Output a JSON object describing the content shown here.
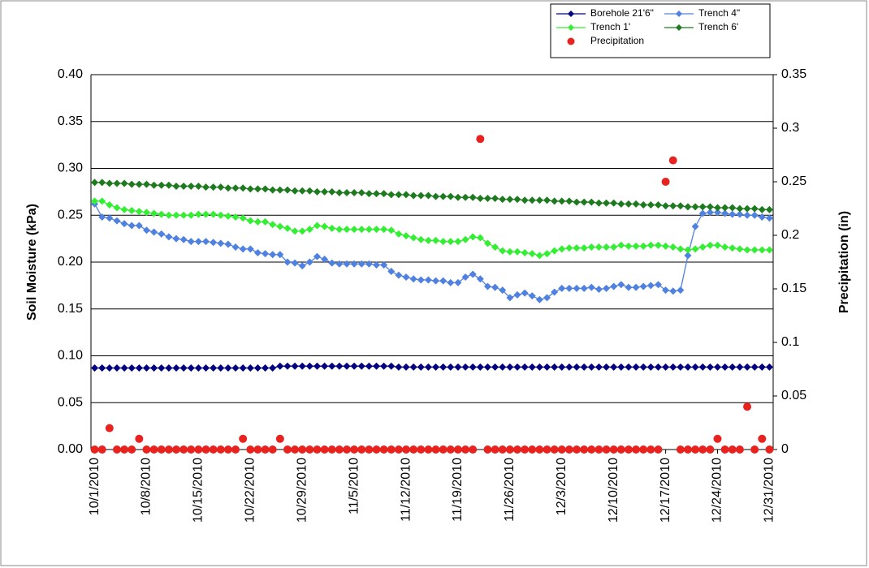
{
  "chart_data": {
    "type": "line",
    "ylabel": "Soil Moisture (kPa)",
    "y2label": "Precipitation (in)",
    "categories": [
      "10/1/2010",
      null,
      null,
      null,
      null,
      null,
      null,
      "10/8/2010",
      null,
      null,
      null,
      null,
      null,
      null,
      "10/15/2010",
      null,
      null,
      null,
      null,
      null,
      null,
      "10/22/2010",
      null,
      null,
      null,
      null,
      null,
      null,
      "10/29/2010",
      null,
      null,
      null,
      null,
      null,
      null,
      "11/5/2010",
      null,
      null,
      null,
      null,
      null,
      null,
      "11/12/2010",
      null,
      null,
      null,
      null,
      null,
      null,
      "11/19/2010",
      null,
      null,
      null,
      null,
      null,
      null,
      "11/26/2010",
      null,
      null,
      null,
      null,
      null,
      null,
      "12/3/2010",
      null,
      null,
      null,
      null,
      null,
      null,
      "12/10/2010",
      null,
      null,
      null,
      null,
      null,
      null,
      "12/17/2010",
      null,
      null,
      null,
      null,
      null,
      null,
      "12/24/2010",
      null,
      null,
      null,
      null,
      null,
      null,
      "12/31/2010"
    ],
    "ylim": [
      0,
      0.4
    ],
    "yticks": [
      {
        "value": 0,
        "label": "0.00"
      },
      {
        "value": 0.05,
        "label": "0.05"
      },
      {
        "value": 0.1,
        "label": "0.10"
      },
      {
        "value": 0.15,
        "label": "0.15"
      },
      {
        "value": 0.2,
        "label": "0.20"
      },
      {
        "value": 0.25,
        "label": "0.25"
      },
      {
        "value": 0.3,
        "label": "0.30"
      },
      {
        "value": 0.35,
        "label": "0.35"
      },
      {
        "value": 0.4,
        "label": "0.40"
      }
    ],
    "y2lim": [
      0,
      0.35
    ],
    "y2ticks": [
      0,
      0.05,
      0.1,
      0.15,
      0.2,
      0.25,
      0.3,
      0.35
    ],
    "grid": true,
    "legend": "top-right",
    "series": [
      {
        "name": "Borehole 21'6\"",
        "color": "#000080",
        "values": [
          0.087,
          0.087,
          0.087,
          0.087,
          0.087,
          0.087,
          0.087,
          0.087,
          0.087,
          0.087,
          0.087,
          0.087,
          0.087,
          0.087,
          0.087,
          0.087,
          0.087,
          0.087,
          0.087,
          0.087,
          0.087,
          0.087,
          0.087,
          0.087,
          0.087,
          0.089,
          0.089,
          0.089,
          0.089,
          0.089,
          0.089,
          0.089,
          0.089,
          0.089,
          0.089,
          0.089,
          0.089,
          0.089,
          0.089,
          0.089,
          0.089,
          0.088,
          0.088,
          0.088,
          0.088,
          0.088,
          0.088,
          0.088,
          0.088,
          0.088,
          0.088,
          0.088,
          0.088,
          0.088,
          0.088,
          0.088,
          0.088,
          0.088,
          0.088,
          0.088,
          0.088,
          0.088,
          0.088,
          0.088,
          0.088,
          0.088,
          0.088,
          0.088,
          0.088,
          0.088,
          0.088,
          0.088,
          0.088,
          0.088,
          0.088,
          0.088,
          0.088,
          0.088,
          0.088,
          0.088,
          0.088,
          0.088,
          0.088,
          0.088,
          0.088,
          0.088,
          0.088,
          0.088,
          0.088,
          0.088,
          0.088,
          0.088
        ]
      },
      {
        "name": "Trench 4\"",
        "color": "#4f81e0",
        "values": [
          0.262,
          0.248,
          0.247,
          0.244,
          0.241,
          0.239,
          0.239,
          0.234,
          0.232,
          0.23,
          0.227,
          0.225,
          0.224,
          0.222,
          0.222,
          0.222,
          0.221,
          0.22,
          0.219,
          0.216,
          0.214,
          0.214,
          0.21,
          0.209,
          0.208,
          0.208,
          0.2,
          0.199,
          0.196,
          0.2,
          0.206,
          0.203,
          0.199,
          0.198,
          0.198,
          0.198,
          0.198,
          0.198,
          0.197,
          0.197,
          0.19,
          0.186,
          0.184,
          0.182,
          0.181,
          0.181,
          0.18,
          0.18,
          0.178,
          0.178,
          0.184,
          0.187,
          0.182,
          0.174,
          0.173,
          0.17,
          0.162,
          0.165,
          0.167,
          0.164,
          0.16,
          0.162,
          0.168,
          0.172,
          0.172,
          0.172,
          0.172,
          0.173,
          0.171,
          0.172,
          0.174,
          0.176,
          0.173,
          0.173,
          0.174,
          0.175,
          0.176,
          0.17,
          0.169,
          0.17,
          0.207,
          0.238,
          0.252,
          0.253,
          0.253,
          0.252,
          0.251,
          0.251,
          0.25,
          0.25,
          0.248,
          0.247
        ]
      },
      {
        "name": "Trench 1'",
        "color": "#33ee33",
        "values": [
          0.265,
          0.265,
          0.261,
          0.258,
          0.256,
          0.255,
          0.254,
          0.253,
          0.252,
          0.251,
          0.25,
          0.25,
          0.25,
          0.25,
          0.251,
          0.251,
          0.251,
          0.25,
          0.249,
          0.248,
          0.247,
          0.244,
          0.243,
          0.243,
          0.24,
          0.238,
          0.236,
          0.233,
          0.233,
          0.235,
          0.239,
          0.238,
          0.236,
          0.235,
          0.235,
          0.235,
          0.235,
          0.235,
          0.235,
          0.235,
          0.234,
          0.23,
          0.228,
          0.226,
          0.224,
          0.223,
          0.223,
          0.222,
          0.222,
          0.222,
          0.224,
          0.227,
          0.226,
          0.22,
          0.216,
          0.212,
          0.211,
          0.211,
          0.21,
          0.209,
          0.207,
          0.209,
          0.212,
          0.214,
          0.215,
          0.215,
          0.215,
          0.216,
          0.216,
          0.216,
          0.216,
          0.218,
          0.217,
          0.217,
          0.217,
          0.218,
          0.218,
          0.217,
          0.216,
          0.214,
          0.213,
          0.214,
          0.216,
          0.218,
          0.218,
          0.216,
          0.215,
          0.214,
          0.213,
          0.213,
          0.213,
          0.213
        ]
      },
      {
        "name": "Trench 6'",
        "color": "#1e7a1e",
        "values": [
          0.285,
          0.285,
          0.284,
          0.284,
          0.284,
          0.283,
          0.283,
          0.283,
          0.282,
          0.282,
          0.282,
          0.281,
          0.281,
          0.281,
          0.281,
          0.28,
          0.28,
          0.28,
          0.279,
          0.279,
          0.279,
          0.278,
          0.278,
          0.278,
          0.277,
          0.277,
          0.277,
          0.276,
          0.276,
          0.276,
          0.275,
          0.275,
          0.275,
          0.274,
          0.274,
          0.274,
          0.274,
          0.273,
          0.273,
          0.273,
          0.272,
          0.272,
          0.272,
          0.271,
          0.271,
          0.271,
          0.27,
          0.27,
          0.27,
          0.269,
          0.269,
          0.269,
          0.268,
          0.268,
          0.268,
          0.267,
          0.267,
          0.267,
          0.266,
          0.266,
          0.266,
          0.266,
          0.265,
          0.265,
          0.265,
          0.264,
          0.264,
          0.264,
          0.263,
          0.263,
          0.263,
          0.262,
          0.262,
          0.262,
          0.261,
          0.261,
          0.261,
          0.26,
          0.26,
          0.26,
          0.259,
          0.259,
          0.259,
          0.259,
          0.258,
          0.258,
          0.258,
          0.257,
          0.257,
          0.257,
          0.256,
          0.256
        ]
      },
      {
        "name": "Precipitation",
        "color": "#e8231f",
        "type": "scatter",
        "axis": "y2",
        "values": [
          0,
          0,
          0.02,
          0,
          0,
          0,
          0.01,
          0,
          0,
          0,
          0,
          0,
          0,
          0,
          0,
          0,
          0,
          0,
          0,
          0,
          0.01,
          0,
          0,
          0,
          0,
          0.01,
          0,
          0,
          0,
          0,
          0,
          0,
          0,
          0,
          0,
          0,
          0,
          0,
          0,
          0,
          0,
          0,
          0,
          0,
          0,
          0,
          0,
          0,
          0,
          0,
          0,
          0,
          0.29,
          0,
          0,
          0,
          0,
          0,
          0,
          0,
          0,
          0,
          0,
          0,
          0,
          0,
          0,
          0,
          0,
          0,
          0,
          0,
          0,
          0,
          0,
          0,
          0,
          0.25,
          0.27,
          0,
          0,
          0,
          0,
          0,
          0.01,
          0,
          0,
          0,
          0.04,
          0,
          0.01,
          0
        ]
      }
    ]
  }
}
